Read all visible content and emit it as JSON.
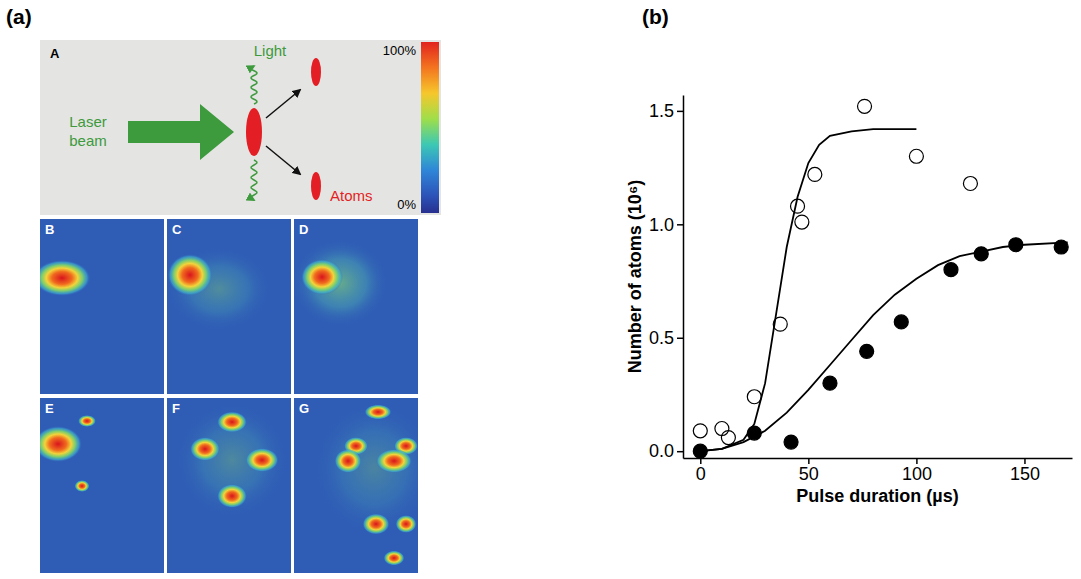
{
  "panel_labels": [
    "(a)",
    "(b)"
  ],
  "schematic": {
    "letter": "A",
    "laser_beam": "Laser beam",
    "light": "Light",
    "atoms": "Atoms"
  },
  "colorbar": {
    "range": [
      0,
      100
    ],
    "ticks": [
      {
        "value": 100,
        "label": "100%"
      },
      {
        "value": 0,
        "label": "0%"
      }
    ]
  },
  "images": {
    "labels": [
      "B",
      "C",
      "D",
      "E",
      "F",
      "G"
    ]
  },
  "chart_data": {
    "type": "scatter",
    "x_label": "Pulse duration (µs)",
    "y_label": "Number of atoms (10⁶)",
    "xlim": [
      -8,
      172
    ],
    "xticks": [
      0,
      50,
      100,
      150
    ],
    "ylim": [
      -0.03,
      1.57
    ],
    "yticks": [
      {
        "value": 0,
        "label": "0.0"
      },
      {
        "value": 0.5,
        "label": "0.5"
      },
      {
        "value": 1,
        "label": "1.0"
      },
      {
        "value": 1.5,
        "label": "1.5"
      }
    ],
    "grid": false,
    "series": [
      {
        "type": "scatter",
        "marker": "open-circle",
        "color": "#000000",
        "x": [
          0,
          10,
          13,
          25,
          37,
          45,
          47,
          53,
          76,
          100,
          125
        ],
        "values": [
          0.09,
          0.1,
          0.06,
          0.24,
          0.56,
          1.08,
          1.01,
          1.22,
          1.52,
          1.3,
          1.18
        ]
      },
      {
        "type": "scatter",
        "marker": "filled-circle",
        "color": "#000000",
        "x": [
          0,
          25,
          42,
          60,
          77,
          93,
          116,
          130,
          146,
          167
        ],
        "values": [
          0.0,
          0.08,
          0.04,
          0.3,
          0.44,
          0.57,
          0.8,
          0.87,
          0.91,
          0.9
        ]
      },
      {
        "type": "line",
        "line_style": "solid",
        "color": "#000000",
        "x": [
          0,
          10,
          20,
          25,
          30,
          35,
          40,
          45,
          50,
          55,
          60,
          70,
          80,
          100
        ],
        "values": [
          0.0,
          0.01,
          0.05,
          0.12,
          0.3,
          0.6,
          0.9,
          1.12,
          1.27,
          1.35,
          1.39,
          1.41,
          1.42,
          1.42
        ]
      },
      {
        "type": "line",
        "line_style": "solid",
        "color": "#000000",
        "x": [
          0,
          10,
          20,
          30,
          40,
          50,
          60,
          70,
          80,
          90,
          100,
          110,
          120,
          130,
          140,
          150,
          170
        ],
        "values": [
          0.0,
          0.01,
          0.04,
          0.09,
          0.17,
          0.27,
          0.38,
          0.49,
          0.6,
          0.69,
          0.76,
          0.82,
          0.86,
          0.88,
          0.9,
          0.91,
          0.92
        ]
      }
    ]
  }
}
